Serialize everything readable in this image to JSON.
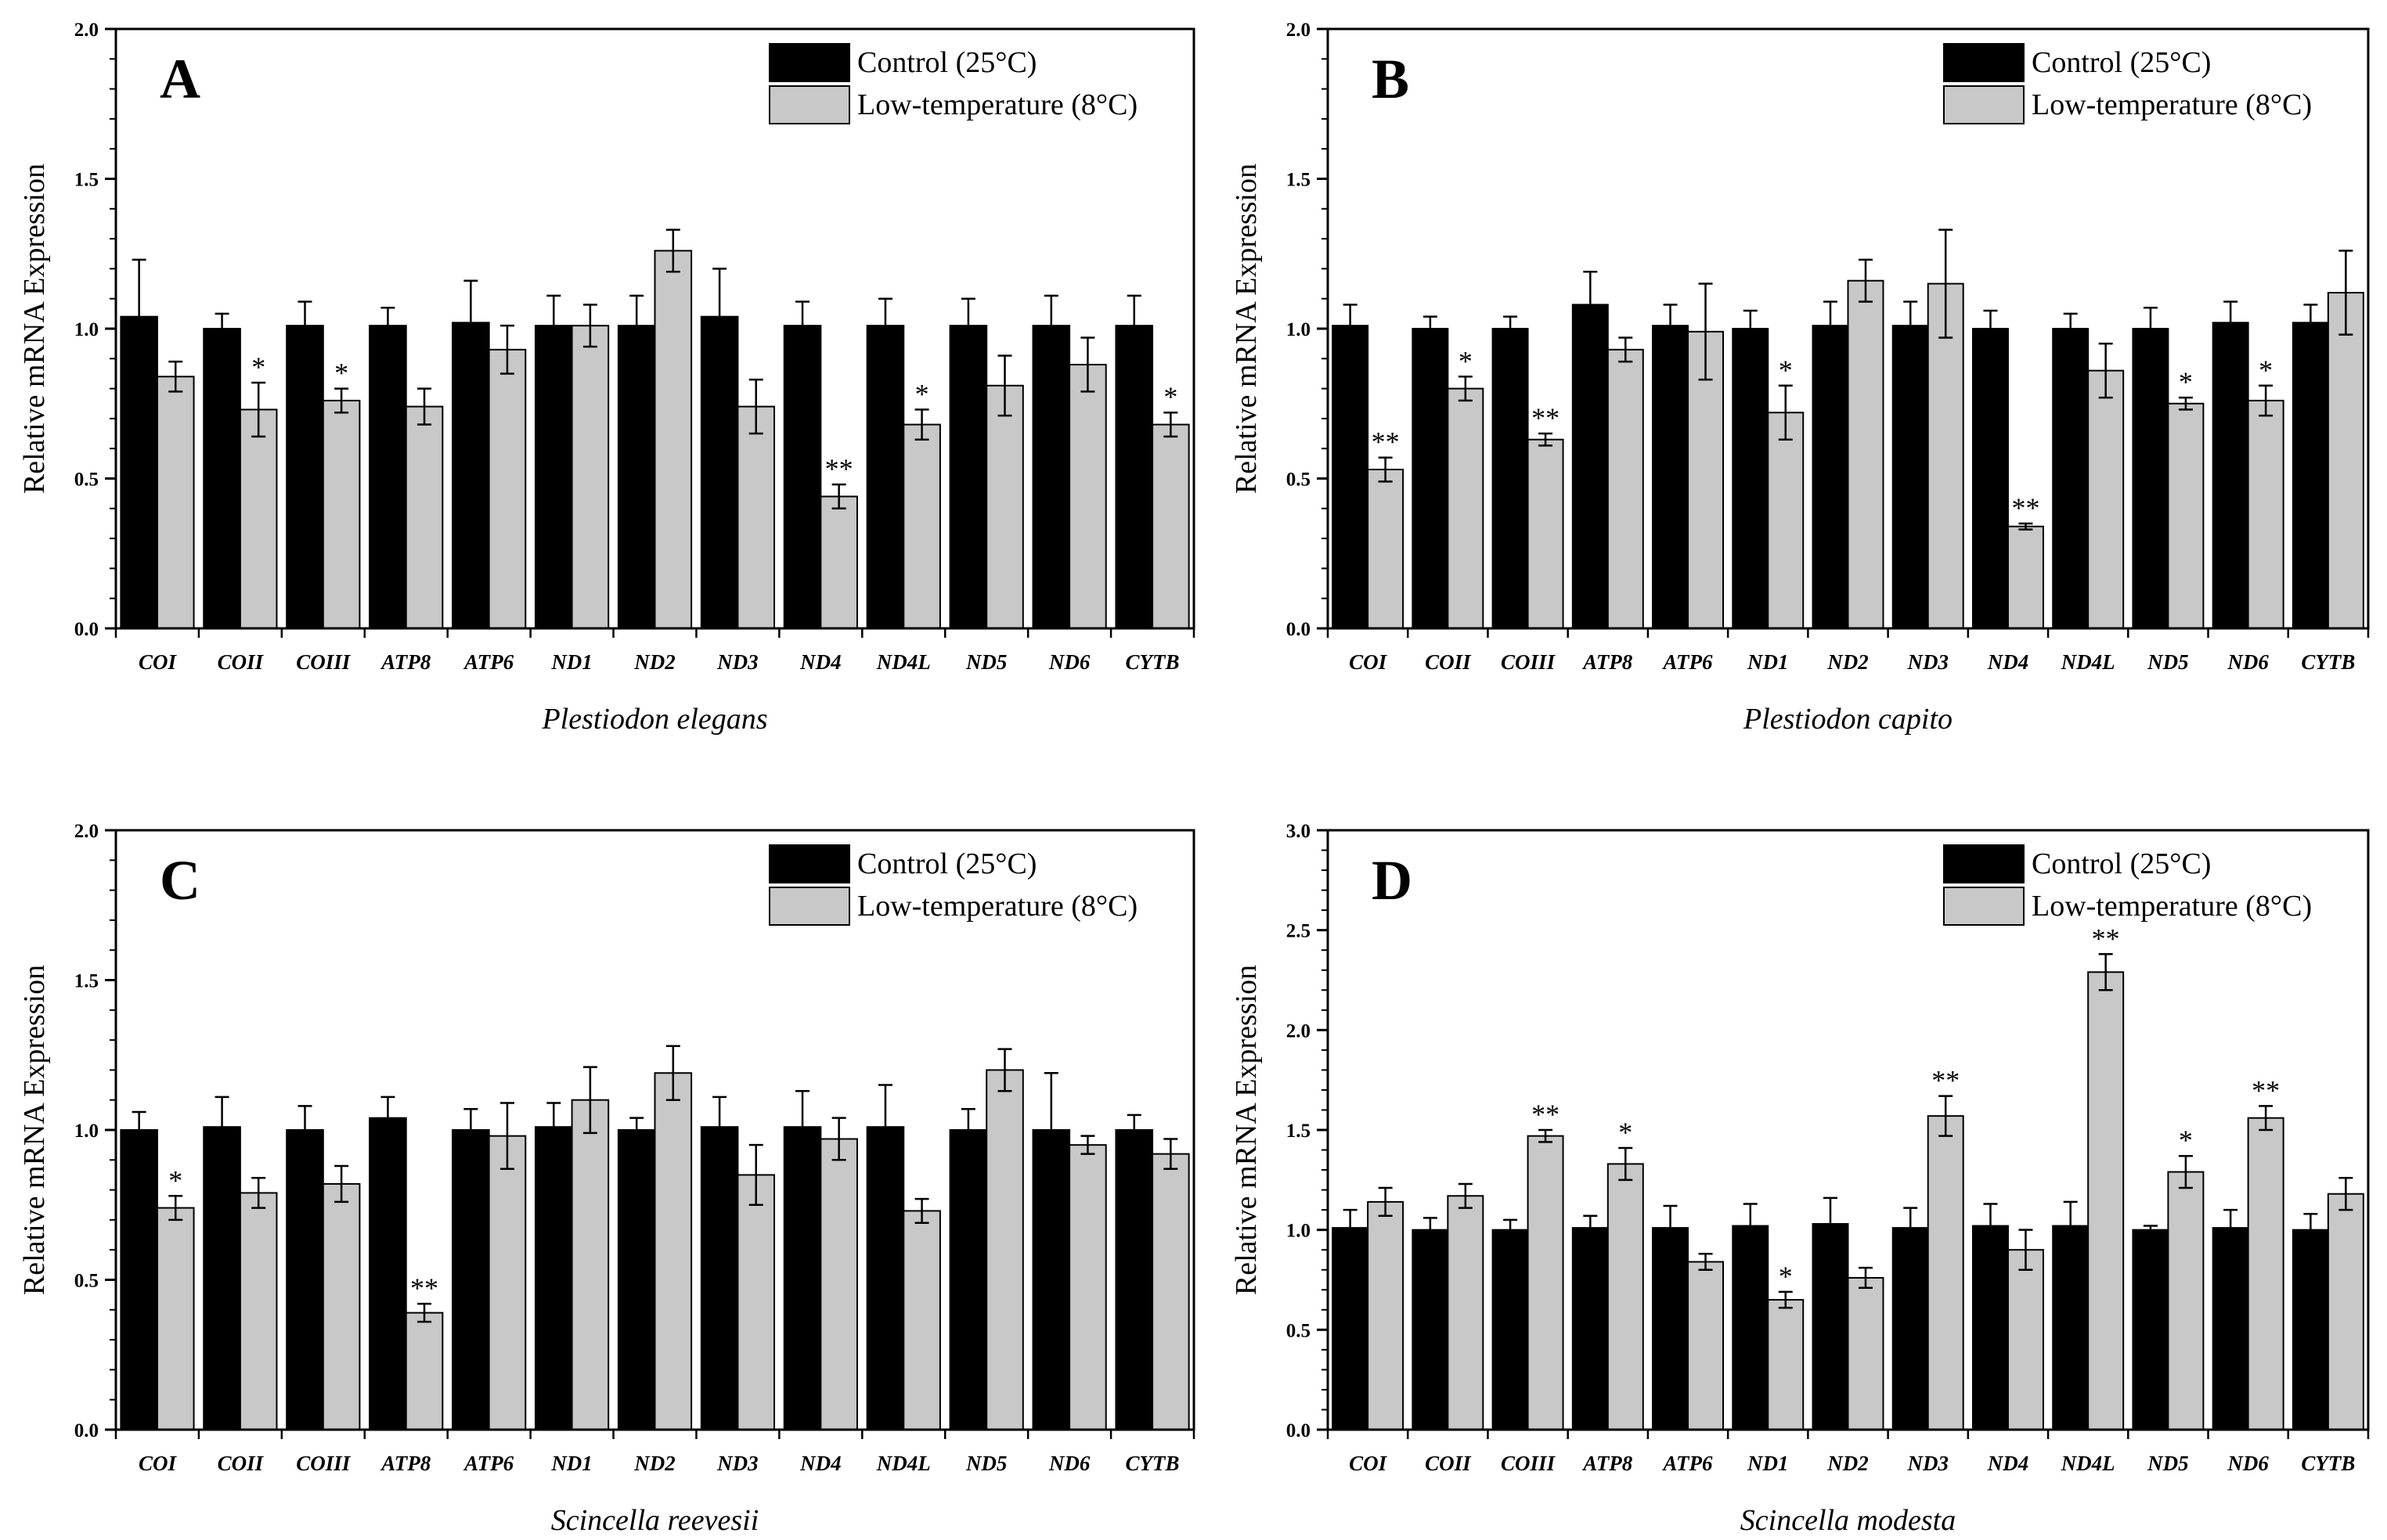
{
  "series_colors": {
    "control": "#000000",
    "low": "#c8c8c8"
  },
  "chart_data": [
    {
      "type": "bar",
      "panel_label": "A",
      "xlabel": "Plestiodon elegans",
      "ylabel": "Relative mRNA Expression",
      "ylim": [
        0,
        2.0
      ],
      "yticks": [
        "0.0",
        "0.5",
        "1.0",
        "1.5",
        "2.0"
      ],
      "legend_position": "top-right",
      "categories": [
        "COI",
        "COII",
        "COIII",
        "ATP8",
        "ATP6",
        "ND1",
        "ND2",
        "ND3",
        "ND4",
        "ND4L",
        "ND5",
        "ND6",
        "CYTB"
      ],
      "series": [
        {
          "name": "Control (25°C)",
          "values": [
            1.04,
            1.0,
            1.01,
            1.01,
            1.02,
            1.01,
            1.01,
            1.04,
            1.01,
            1.01,
            1.01,
            1.01,
            1.01
          ],
          "errors": [
            0.19,
            0.05,
            0.08,
            0.06,
            0.14,
            0.1,
            0.1,
            0.16,
            0.08,
            0.09,
            0.09,
            0.1,
            0.1
          ],
          "significance": [
            "",
            "",
            "",
            "",
            "",
            "",
            "",
            "",
            "",
            "",
            "",
            "",
            ""
          ]
        },
        {
          "name": "Low-temperature (8°C)",
          "values": [
            0.84,
            0.73,
            0.76,
            0.74,
            0.93,
            1.01,
            1.26,
            0.74,
            0.44,
            0.68,
            0.81,
            0.88,
            0.68
          ],
          "errors": [
            0.05,
            0.09,
            0.04,
            0.06,
            0.08,
            0.07,
            0.07,
            0.09,
            0.04,
            0.05,
            0.1,
            0.09,
            0.04
          ],
          "significance": [
            "",
            "*",
            "*",
            "",
            "",
            "",
            "",
            "",
            "**",
            "*",
            "",
            "",
            "*"
          ]
        }
      ]
    },
    {
      "type": "bar",
      "panel_label": "B",
      "xlabel": "Plestiodon capito",
      "ylabel": "Relative mRNA Expression",
      "ylim": [
        0,
        2.0
      ],
      "yticks": [
        "0.0",
        "0.5",
        "1.0",
        "1.5",
        "2.0"
      ],
      "legend_position": "top-right",
      "categories": [
        "COI",
        "COII",
        "COIII",
        "ATP8",
        "ATP6",
        "ND1",
        "ND2",
        "ND3",
        "ND4",
        "ND4L",
        "ND5",
        "ND6",
        "CYTB"
      ],
      "series": [
        {
          "name": "Control (25°C)",
          "values": [
            1.01,
            1.0,
            1.0,
            1.08,
            1.01,
            1.0,
            1.01,
            1.01,
            1.0,
            1.0,
            1.0,
            1.02,
            1.02
          ],
          "errors": [
            0.07,
            0.04,
            0.04,
            0.11,
            0.07,
            0.06,
            0.08,
            0.08,
            0.06,
            0.05,
            0.07,
            0.07,
            0.06
          ],
          "significance": [
            "",
            "",
            "",
            "",
            "",
            "",
            "",
            "",
            "",
            "",
            "",
            "",
            ""
          ]
        },
        {
          "name": "Low-temperature (8°C)",
          "values": [
            0.53,
            0.8,
            0.63,
            0.93,
            0.99,
            0.72,
            1.16,
            1.15,
            0.34,
            0.86,
            0.75,
            0.76,
            1.12
          ],
          "errors": [
            0.04,
            0.04,
            0.02,
            0.04,
            0.16,
            0.09,
            0.07,
            0.18,
            0.01,
            0.09,
            0.02,
            0.05,
            0.14
          ],
          "significance": [
            "**",
            "*",
            "**",
            "",
            "",
            "*",
            "",
            "",
            "**",
            "",
            "*",
            "*",
            ""
          ]
        }
      ]
    },
    {
      "type": "bar",
      "panel_label": "C",
      "xlabel": "Scincella reevesii",
      "ylabel": "Relative mRNA Expression",
      "ylim": [
        0,
        2.0
      ],
      "yticks": [
        "0.0",
        "0.5",
        "1.0",
        "1.5",
        "2.0"
      ],
      "legend_position": "top-right",
      "categories": [
        "COI",
        "COII",
        "COIII",
        "ATP8",
        "ATP6",
        "ND1",
        "ND2",
        "ND3",
        "ND4",
        "ND4L",
        "ND5",
        "ND6",
        "CYTB"
      ],
      "series": [
        {
          "name": "Control (25°C)",
          "values": [
            1.0,
            1.01,
            1.0,
            1.04,
            1.0,
            1.01,
            1.0,
            1.01,
            1.01,
            1.01,
            1.0,
            1.0,
            1.0
          ],
          "errors": [
            0.06,
            0.1,
            0.08,
            0.07,
            0.07,
            0.08,
            0.04,
            0.1,
            0.12,
            0.14,
            0.07,
            0.19,
            0.05
          ],
          "significance": [
            "",
            "",
            "",
            "",
            "",
            "",
            "",
            "",
            "",
            "",
            "",
            "",
            ""
          ]
        },
        {
          "name": "Low-temperature (8°C)",
          "values": [
            0.74,
            0.79,
            0.82,
            0.39,
            0.98,
            1.1,
            1.19,
            0.85,
            0.97,
            0.73,
            1.2,
            0.95,
            0.92
          ],
          "errors": [
            0.04,
            0.05,
            0.06,
            0.03,
            0.11,
            0.11,
            0.09,
            0.1,
            0.07,
            0.04,
            0.07,
            0.03,
            0.05
          ],
          "significance": [
            "*",
            "",
            "",
            "**",
            "",
            "",
            "",
            "",
            "",
            "",
            "",
            "",
            ""
          ]
        }
      ]
    },
    {
      "type": "bar",
      "panel_label": "D",
      "xlabel": "Scincella modesta",
      "ylabel": "Relative mRNA Expression",
      "ylim": [
        0,
        3.0
      ],
      "yticks": [
        "0.0",
        "0.5",
        "1.0",
        "1.5",
        "2.0",
        "2.5",
        "3.0"
      ],
      "legend_position": "top-right",
      "categories": [
        "COI",
        "COII",
        "COIII",
        "ATP8",
        "ATP6",
        "ND1",
        "ND2",
        "ND3",
        "ND4",
        "ND4L",
        "ND5",
        "ND6",
        "CYTB"
      ],
      "series": [
        {
          "name": "Control (25°C)",
          "values": [
            1.01,
            1.0,
            1.0,
            1.01,
            1.01,
            1.02,
            1.03,
            1.01,
            1.02,
            1.02,
            1.0,
            1.01,
            1.0
          ],
          "errors": [
            0.09,
            0.06,
            0.05,
            0.06,
            0.11,
            0.11,
            0.13,
            0.1,
            0.11,
            0.12,
            0.02,
            0.09,
            0.08
          ],
          "significance": [
            "",
            "",
            "",
            "",
            "",
            "",
            "",
            "",
            "",
            "",
            "",
            "",
            ""
          ]
        },
        {
          "name": "Low-temperature (8°C)",
          "values": [
            1.14,
            1.17,
            1.47,
            1.33,
            0.84,
            0.65,
            0.76,
            1.57,
            0.9,
            2.29,
            1.29,
            1.56,
            1.18
          ],
          "errors": [
            0.07,
            0.06,
            0.03,
            0.08,
            0.04,
            0.04,
            0.05,
            0.1,
            0.1,
            0.09,
            0.08,
            0.06,
            0.08
          ],
          "significance": [
            "",
            "",
            "**",
            "*",
            "",
            "*",
            "",
            "**",
            "",
            "**",
            "*",
            "**",
            ""
          ]
        }
      ]
    }
  ]
}
